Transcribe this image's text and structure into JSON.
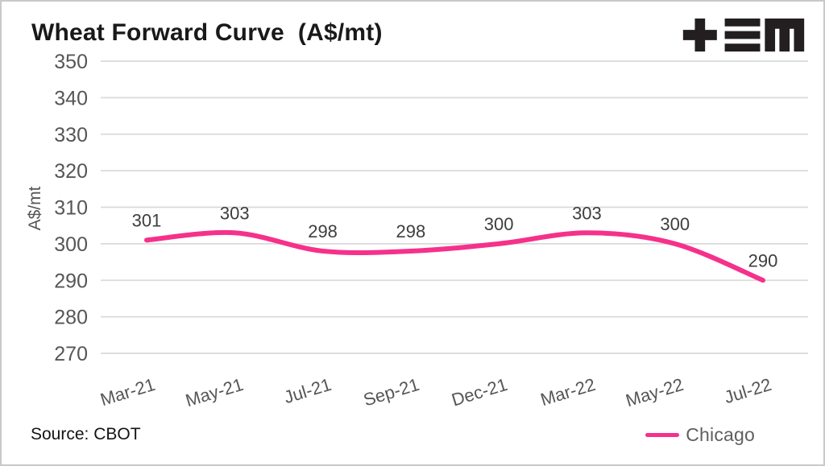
{
  "header": {
    "title": "Wheat Forward Curve  (A$/mt)"
  },
  "logo": {
    "name": "tem-logo",
    "glyphs": [
      "plus",
      "triple-bar",
      "m"
    ],
    "color": "#231f20"
  },
  "footer": {
    "source": "Source: CBOT"
  },
  "legend": {
    "items": [
      {
        "label": "Chicago",
        "color": "#f5318b"
      }
    ]
  },
  "chart_data": {
    "type": "line",
    "title": "Wheat Forward Curve (A$/mt)",
    "ylabel": "A$/mt",
    "ylim": [
      270,
      350
    ],
    "ytick_step": 10,
    "yticks": [
      270,
      280,
      290,
      300,
      310,
      320,
      330,
      340,
      350
    ],
    "categories": [
      "Mar-21",
      "May-21",
      "Jul-21",
      "Sep-21",
      "Dec-21",
      "Mar-22",
      "May-22",
      "Jul-22"
    ],
    "series": [
      {
        "name": "Chicago",
        "color": "#f5318b",
        "values": [
          301,
          303,
          298,
          298,
          300,
          303,
          300,
          290
        ]
      }
    ],
    "grid": "horizontal",
    "smooth": true,
    "data_labels": true,
    "legend_position": "bottom-right",
    "colors": {
      "grid": "#dadada",
      "tick_text": "#565656",
      "data_label": "#3d3d3d"
    }
  }
}
